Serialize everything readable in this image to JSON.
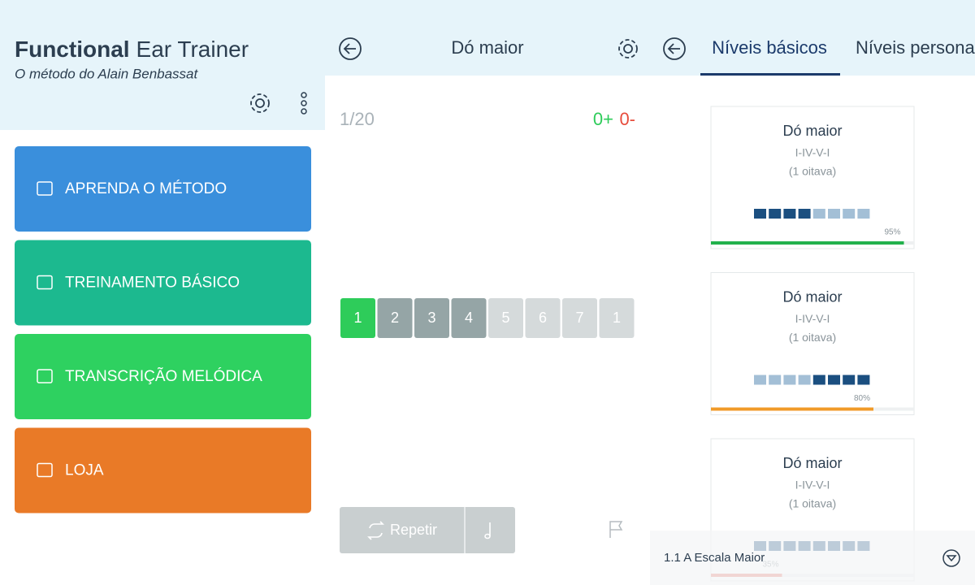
{
  "home": {
    "title_bold": "Functional",
    "title_rest": "Ear Trainer",
    "subtitle": "O método do Alain Benbassat",
    "menu": [
      {
        "label": "APRENDA O MÉTODO",
        "color": "#3a8fdc"
      },
      {
        "label": "TREINAMENTO BÁSICO",
        "color": "#1cb98f"
      },
      {
        "label": "TRANSCRIÇÃO MELÓDICA",
        "color": "#2ed160"
      },
      {
        "label": "LOJA",
        "color": "#e97a27"
      }
    ]
  },
  "exercise": {
    "title": "Dó maior",
    "counter": "1/20",
    "correct": "0+",
    "wrong": "0-",
    "degrees": [
      "1",
      "2",
      "3",
      "4",
      "5",
      "6",
      "7",
      "1"
    ],
    "states": [
      "current",
      "heard",
      "heard",
      "heard",
      "pending",
      "pending",
      "pending",
      "pending"
    ],
    "repeat": "Repetir"
  },
  "levels": {
    "tabs": [
      "Níveis básicos",
      "Níveis personal"
    ],
    "cards": [
      {
        "title": "Dó maior",
        "chords": "I-IV-V-I",
        "range": "(1 oitava)",
        "filled": [
          true,
          true,
          true,
          true,
          false,
          false,
          false,
          false
        ],
        "progress": {
          "value": 95,
          "label": "95%"
        },
        "color": "#22b14c"
      },
      {
        "title": "Dó maior",
        "chords": "I-IV-V-I",
        "range": "(1 oitava)",
        "filled": [
          false,
          false,
          false,
          false,
          true,
          true,
          true,
          true
        ],
        "progress": {
          "value": 80,
          "label": "80%"
        },
        "color": "#f09a28"
      },
      {
        "title": "Dó maior",
        "chords": "I-IV-V-I",
        "range": "(1 oitava)",
        "filled": [
          true,
          true,
          true,
          true,
          true,
          true,
          true,
          true
        ],
        "progress": {
          "value": 35,
          "label": "35%"
        },
        "color": "#e8776b"
      }
    ],
    "footer": "1.1 A Escala Maior"
  }
}
